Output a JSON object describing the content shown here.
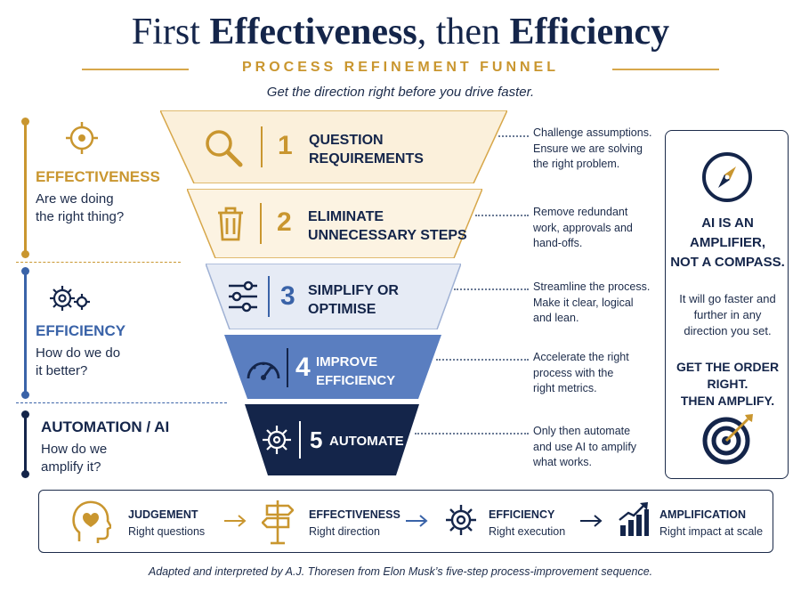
{
  "header": {
    "title_part1": "First ",
    "title_part2": "Effectiveness",
    "title_part3": ", then ",
    "title_part4": "Efficiency",
    "subtitle": "PROCESS REFINEMENT FUNNEL",
    "tagline": "Get the direction right before you drive faster."
  },
  "sections": [
    {
      "title": "EFFECTIVENESS",
      "question_line1": "Are we doing",
      "question_line2": "the right thing?",
      "color": "#c9962f",
      "icon": "target-icon"
    },
    {
      "title": "EFFICIENCY",
      "question_line1": "How do we do",
      "question_line2": "it better?",
      "color": "#3a63a8",
      "icon": "gears-icon"
    },
    {
      "title": "AUTOMATION / AI",
      "question_line1": "How do we",
      "question_line2": "amplify it?",
      "color": "#14254a",
      "icon": ""
    }
  ],
  "funnel": [
    {
      "number": "1",
      "label_line1": "QUESTION",
      "label_line2": "REQUIREMENTS",
      "icon": "magnifier-icon",
      "desc_line1": "Challenge assumptions.",
      "desc_line2": "Ensure we are solving",
      "desc_line3": "the right problem."
    },
    {
      "number": "2",
      "label_line1": "ELIMINATE",
      "label_line2": "UNNECESSARY STEPS",
      "icon": "trash-icon",
      "desc_line1": "Remove redundant",
      "desc_line2": "work, approvals and",
      "desc_line3": "hand-offs."
    },
    {
      "number": "3",
      "label_line1": "SIMPLIFY OR",
      "label_line2": "OPTIMISE",
      "icon": "sliders-icon",
      "desc_line1": "Streamline the process.",
      "desc_line2": "Make it clear, logical",
      "desc_line3": "and lean."
    },
    {
      "number": "4",
      "label_line1": "IMPROVE",
      "label_line2": "EFFICIENCY",
      "icon": "speedometer-icon",
      "desc_line1": "Accelerate the right",
      "desc_line2": "process with the",
      "desc_line3": "right metrics."
    },
    {
      "number": "5",
      "label_line1": "AUTOMATE",
      "label_line2": "",
      "icon": "ai-chip-icon",
      "desc_line1": "Only then automate",
      "desc_line2": "and use AI to amplify",
      "desc_line3": "what works."
    }
  ],
  "sidebar": {
    "head_line1": "AI IS AN",
    "head_line2": "AMPLIFIER,",
    "head_line3": "NOT A COMPASS.",
    "body_line1": "It will go faster and",
    "body_line2": "further in any",
    "body_line3": "direction you set.",
    "close_line1": "GET THE ORDER",
    "close_line2": "RIGHT.",
    "close_line3": "THEN AMPLIFY."
  },
  "flow": [
    {
      "title": "JUDGEMENT",
      "subtitle": "Right questions",
      "icon": "head-heart-icon"
    },
    {
      "title": "EFFECTIVENESS",
      "subtitle": "Right direction",
      "icon": "signpost-icon"
    },
    {
      "title": "EFFICIENCY",
      "subtitle": "Right execution",
      "icon": "gear-icon"
    },
    {
      "title": "AMPLIFICATION",
      "subtitle": "Right impact at scale",
      "icon": "growth-chart-icon"
    }
  ],
  "footer": "Adapted and interpreted by A.J. Thoresen from Elon Musk’s five-step process-improvement sequence.",
  "colors": {
    "gold": "#c9962f",
    "navy": "#14254a",
    "blue": "#3a63a8",
    "stage1_fill": "#fbf0db",
    "stage2_fill": "#fcf3e2",
    "stage3_fill": "#e6ebf5",
    "stage4_fill": "#5a7ec0",
    "stage5_fill": "#14254a"
  }
}
